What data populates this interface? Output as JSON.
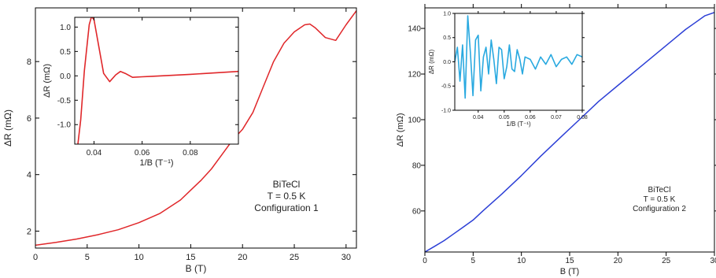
{
  "chart_data": [
    {
      "id": "left-main",
      "type": "line",
      "xlabel": "B (T)",
      "ylabel": "ΔR (mΩ)",
      "xlim": [
        0,
        31
      ],
      "ylim": [
        1.4,
        9.9
      ],
      "xticks": [
        0,
        5,
        10,
        15,
        20,
        25,
        30
      ],
      "yticks": [
        2,
        4,
        6,
        8
      ],
      "color": "#e0272a",
      "annotation": [
        "BiTeCl",
        "T = 0.5 K",
        "Configuration 1"
      ],
      "series": [
        {
          "x": [
            0,
            2,
            4,
            6,
            8,
            10,
            12,
            14,
            15,
            16,
            17,
            18,
            19,
            20,
            21,
            22,
            23,
            24,
            25,
            26,
            26.5,
            27,
            28,
            29,
            30,
            31
          ],
          "y": [
            1.5,
            1.6,
            1.72,
            1.87,
            2.05,
            2.3,
            2.62,
            3.1,
            3.45,
            3.8,
            4.2,
            4.7,
            5.2,
            5.6,
            6.2,
            7.1,
            8.0,
            8.65,
            9.05,
            9.3,
            9.33,
            9.2,
            8.85,
            8.75,
            9.3,
            9.8
          ]
        }
      ]
    },
    {
      "id": "left-inset",
      "type": "line",
      "xlabel": "1/B (T⁻¹)",
      "ylabel": "ΔR (mΩ)",
      "xlim": [
        0.032,
        0.1
      ],
      "ylim": [
        -1.4,
        1.2
      ],
      "xticks": [
        0.04,
        0.06,
        0.08
      ],
      "yticks": [
        -1.0,
        -0.5,
        0.0,
        0.5,
        1.0
      ],
      "ytick_labels": [
        "-1.0",
        "-0.5",
        "0.0",
        "0.5",
        "1.0"
      ],
      "color": "#e0272a",
      "series": [
        {
          "x": [
            0.0333,
            0.0345,
            0.036,
            0.038,
            0.039,
            0.04,
            0.042,
            0.044,
            0.0465,
            0.049,
            0.051,
            0.053,
            0.056,
            0.06,
            0.064,
            0.068,
            0.072,
            0.08,
            0.09,
            0.1
          ],
          "y": [
            -1.4,
            -0.9,
            0.1,
            1.05,
            1.22,
            1.15,
            0.6,
            0.05,
            -0.12,
            0.02,
            0.09,
            0.05,
            -0.03,
            -0.02,
            -0.01,
            0.0,
            0.01,
            0.03,
            0.06,
            0.09
          ]
        }
      ]
    },
    {
      "id": "right-main",
      "type": "line",
      "xlabel": "B (T)",
      "ylabel": "ΔR (mΩ)",
      "xlim": [
        0,
        30
      ],
      "ylim": [
        42,
        149
      ],
      "xticks": [
        0,
        5,
        10,
        15,
        20,
        25,
        30
      ],
      "xtick_labels": [
        "0",
        "5",
        "10",
        "15",
        "20",
        "25",
        "30"
      ],
      "yticks": [
        60,
        80,
        100,
        120,
        140
      ],
      "color": "#2c3fd6",
      "annotation": [
        "BiTeCl",
        "T = 0.5 K",
        "Configuration 2"
      ],
      "series": [
        {
          "x": [
            0,
            1,
            2,
            3,
            4,
            5,
            6,
            8,
            10,
            12,
            14,
            16,
            18,
            20,
            22,
            24,
            26,
            27,
            28,
            29,
            30
          ],
          "y": [
            42,
            44.5,
            47,
            50,
            53,
            56,
            60,
            67.5,
            75.5,
            84,
            92,
            100,
            108,
            115,
            122,
            129,
            136,
            139.5,
            142.5,
            145.5,
            147
          ]
        }
      ]
    },
    {
      "id": "right-inset",
      "type": "line",
      "xlabel": "1/B (T⁻¹)",
      "ylabel": "ΔR (mΩ)",
      "xlim": [
        0.031,
        0.08
      ],
      "ylim": [
        -1.0,
        1.0
      ],
      "xticks": [
        0.04,
        0.05,
        0.06,
        0.07,
        0.08
      ],
      "yticks": [
        -1.0,
        -0.5,
        0.0,
        0.5,
        1.0
      ],
      "ytick_labels": [
        "-1.0",
        "-0.5",
        "0.0",
        "0.5",
        "1.0"
      ],
      "color": "#29a9e0",
      "series": [
        {
          "x": [
            0.031,
            0.032,
            0.033,
            0.034,
            0.035,
            0.036,
            0.037,
            0.038,
            0.039,
            0.04,
            0.041,
            0.042,
            0.043,
            0.044,
            0.045,
            0.046,
            0.047,
            0.048,
            0.049,
            0.05,
            0.051,
            0.052,
            0.053,
            0.054,
            0.055,
            0.056,
            0.057,
            0.058,
            0.06,
            0.062,
            0.064,
            0.066,
            0.068,
            0.07,
            0.072,
            0.074,
            0.076,
            0.078,
            0.08
          ],
          "y": [
            0.0,
            0.3,
            -0.4,
            0.35,
            -0.75,
            0.95,
            0.2,
            -0.7,
            0.45,
            0.55,
            -0.6,
            0.1,
            0.3,
            -0.25,
            0.45,
            0.05,
            -0.45,
            0.3,
            0.25,
            -0.35,
            -0.1,
            0.35,
            -0.15,
            -0.2,
            0.25,
            0.05,
            -0.25,
            0.1,
            0.05,
            -0.15,
            0.1,
            -0.05,
            0.15,
            -0.1,
            0.05,
            0.1,
            -0.05,
            0.15,
            0.1
          ]
        }
      ]
    }
  ]
}
